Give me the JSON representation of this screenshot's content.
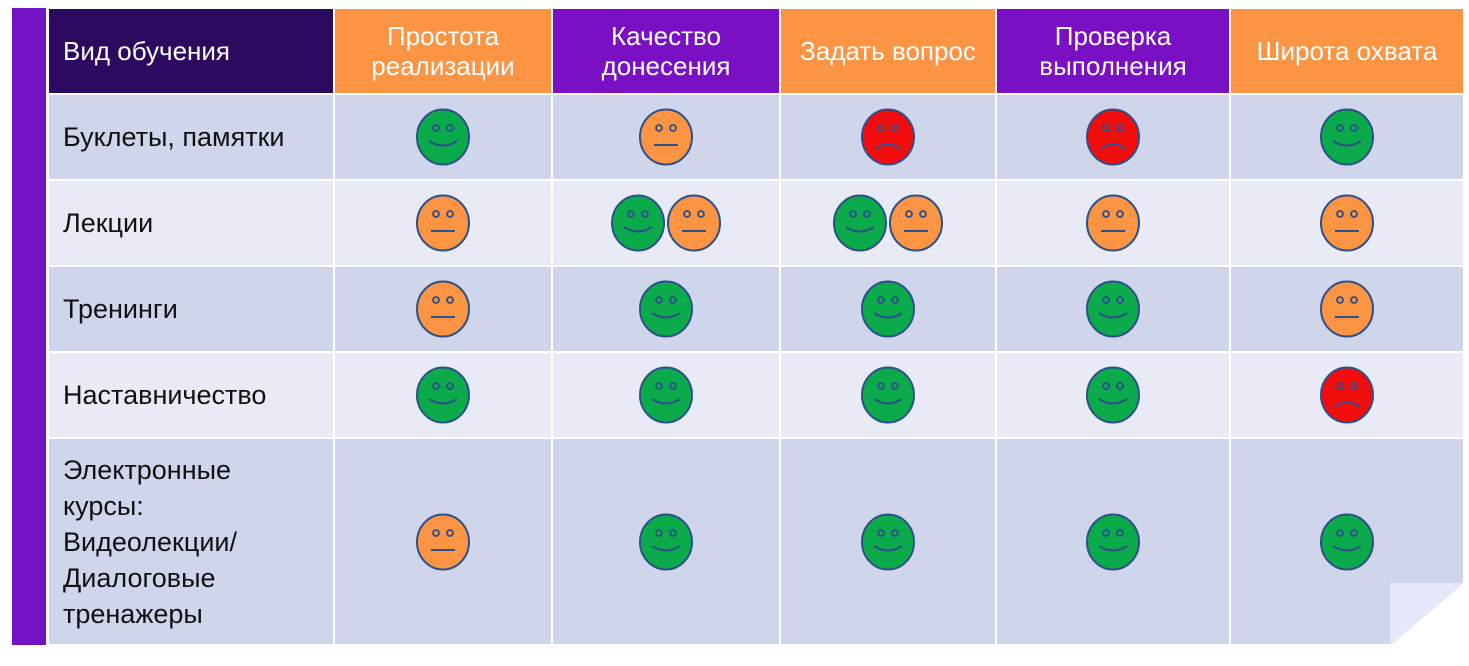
{
  "colors": {
    "good": "#0bab4b",
    "neutral": "#fb9443",
    "bad": "#f20c0c",
    "outline": "#2d4f8a"
  },
  "header": {
    "first": "Вид обучения",
    "columns": [
      {
        "label": "Простота реализации",
        "color": "orange"
      },
      {
        "label": "Качество донесения",
        "color": "purple"
      },
      {
        "label": "Задать вопрос",
        "color": "orange"
      },
      {
        "label": "Проверка выполнения",
        "color": "purple"
      },
      {
        "label": "Широта охвата",
        "color": "orange"
      }
    ]
  },
  "rows": [
    {
      "label": "Буклеты, памятки",
      "ratings": [
        [
          "good"
        ],
        [
          "neutral"
        ],
        [
          "bad"
        ],
        [
          "bad"
        ],
        [
          "good"
        ]
      ]
    },
    {
      "label": "Лекции",
      "ratings": [
        [
          "neutral"
        ],
        [
          "good",
          "neutral"
        ],
        [
          "good",
          "neutral"
        ],
        [
          "neutral"
        ],
        [
          "neutral"
        ]
      ]
    },
    {
      "label": "Тренинги",
      "ratings": [
        [
          "neutral"
        ],
        [
          "good"
        ],
        [
          "good"
        ],
        [
          "good"
        ],
        [
          "neutral"
        ]
      ]
    },
    {
      "label": "Наставничество",
      "ratings": [
        [
          "good"
        ],
        [
          "good"
        ],
        [
          "good"
        ],
        [
          "good"
        ],
        [
          "bad"
        ]
      ]
    },
    {
      "label": "Электронные курсы: Видеолекции/ Диалоговые тренажеры",
      "ratings": [
        [
          "neutral"
        ],
        [
          "good"
        ],
        [
          "good"
        ],
        [
          "good"
        ],
        [
          "good"
        ]
      ]
    }
  ]
}
